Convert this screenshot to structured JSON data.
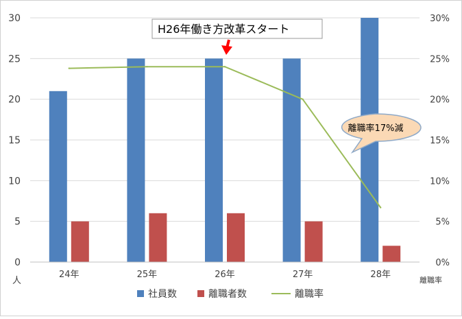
{
  "chart_data": {
    "type": "bar",
    "categories": [
      "24年",
      "25年",
      "26年",
      "27年",
      "28年"
    ],
    "series": [
      {
        "name": "社員数",
        "kind": "bar",
        "axis": "left",
        "color": "#4f81bd",
        "values": [
          21,
          25,
          25,
          25,
          30
        ]
      },
      {
        "name": "離職者数",
        "kind": "bar",
        "axis": "left",
        "color": "#c0504d",
        "values": [
          5,
          6,
          6,
          5,
          2
        ]
      },
      {
        "name": "離職率",
        "kind": "line",
        "axis": "right",
        "color": "#9bbb59",
        "values": [
          23.8,
          24.0,
          24.0,
          20.0,
          6.7
        ]
      }
    ],
    "left_axis": {
      "label": "人",
      "ylim": [
        0,
        30
      ],
      "ticks": [
        "0",
        "5",
        "10",
        "15",
        "20",
        "25",
        "30"
      ]
    },
    "right_axis": {
      "label": "離職率",
      "ylim": [
        0,
        30
      ],
      "ticks": [
        "0%",
        "5%",
        "10%",
        "15%",
        "20%",
        "25%",
        "30%"
      ]
    },
    "legend_position": "bottom",
    "grid": true,
    "annotations": {
      "event_label": "H26年働き方改革スタート",
      "event_category_index": 2,
      "callout_label": "離職率17%減"
    }
  },
  "colors": {
    "arrow": "#ff0000",
    "grid": "#d9d9d9",
    "callout_fill": "#fbd9b5",
    "callout_stroke": "#8ea9c8"
  }
}
